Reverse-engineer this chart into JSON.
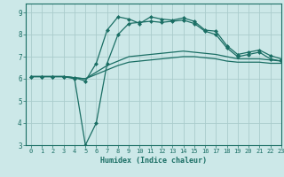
{
  "xlabel": "Humidex (Indice chaleur)",
  "background_color": "#cce8e8",
  "grid_color": "#aacccc",
  "line_color": "#1a6e64",
  "xlim": [
    -0.5,
    23
  ],
  "ylim": [
    3,
    9.4
  ],
  "yticks": [
    3,
    4,
    5,
    6,
    7,
    8,
    9
  ],
  "xticks": [
    0,
    1,
    2,
    3,
    4,
    5,
    6,
    7,
    8,
    9,
    10,
    11,
    12,
    13,
    14,
    15,
    16,
    17,
    18,
    19,
    20,
    21,
    22,
    23
  ],
  "series": [
    [
      6.1,
      6.1,
      6.1,
      6.1,
      6.05,
      5.9,
      6.7,
      8.2,
      8.8,
      8.7,
      8.5,
      8.8,
      8.7,
      8.65,
      8.75,
      8.6,
      8.2,
      8.15,
      7.5,
      7.1,
      7.2,
      7.3,
      7.05,
      6.9
    ],
    [
      6.1,
      6.1,
      6.1,
      6.1,
      6.0,
      3.0,
      4.0,
      6.7,
      8.0,
      8.5,
      8.55,
      8.6,
      8.55,
      8.6,
      8.65,
      8.5,
      8.15,
      8.0,
      7.4,
      7.0,
      7.1,
      7.2,
      6.9,
      6.8
    ],
    [
      6.1,
      6.1,
      6.1,
      6.1,
      6.05,
      6.0,
      6.3,
      6.6,
      6.8,
      7.0,
      7.05,
      7.1,
      7.15,
      7.2,
      7.25,
      7.2,
      7.15,
      7.1,
      7.0,
      6.9,
      6.9,
      6.9,
      6.85,
      6.8
    ],
    [
      6.1,
      6.1,
      6.1,
      6.1,
      6.05,
      6.0,
      6.2,
      6.4,
      6.6,
      6.75,
      6.8,
      6.85,
      6.9,
      6.95,
      7.0,
      7.0,
      6.95,
      6.9,
      6.8,
      6.75,
      6.75,
      6.75,
      6.7,
      6.7
    ]
  ]
}
